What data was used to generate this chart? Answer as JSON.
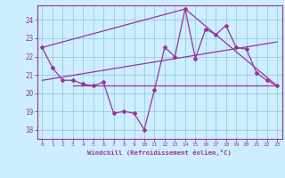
{
  "xlabel": "Windchill (Refroidissement éolien,°C)",
  "background_color": "#cceeff",
  "grid_color": "#99ccdd",
  "line_color": "#993399",
  "xlim": [
    -0.5,
    23.5
  ],
  "ylim": [
    17.5,
    24.8
  ],
  "yticks": [
    18,
    19,
    20,
    21,
    22,
    23,
    24
  ],
  "xticks": [
    0,
    1,
    2,
    3,
    4,
    5,
    6,
    7,
    8,
    9,
    10,
    11,
    12,
    13,
    14,
    15,
    16,
    17,
    18,
    19,
    20,
    21,
    22,
    23
  ],
  "series1_x": [
    0,
    1,
    2,
    3,
    4,
    5,
    6,
    7,
    8,
    9,
    10,
    11,
    12,
    13,
    14,
    15,
    16,
    17,
    18,
    19,
    20,
    21,
    22,
    23
  ],
  "series1_y": [
    22.5,
    21.4,
    20.7,
    20.7,
    20.5,
    20.4,
    20.6,
    18.9,
    19.0,
    18.9,
    18.0,
    20.2,
    22.5,
    22.0,
    24.6,
    21.9,
    23.5,
    23.2,
    23.7,
    22.5,
    22.4,
    21.1,
    20.7,
    20.4
  ],
  "series2_x": [
    0,
    14,
    23
  ],
  "series2_y": [
    22.5,
    24.6,
    20.4
  ],
  "series3_x": [
    3,
    23
  ],
  "series3_y": [
    20.4,
    20.4
  ],
  "series4_x": [
    0,
    23
  ],
  "series4_y": [
    20.7,
    22.8
  ]
}
